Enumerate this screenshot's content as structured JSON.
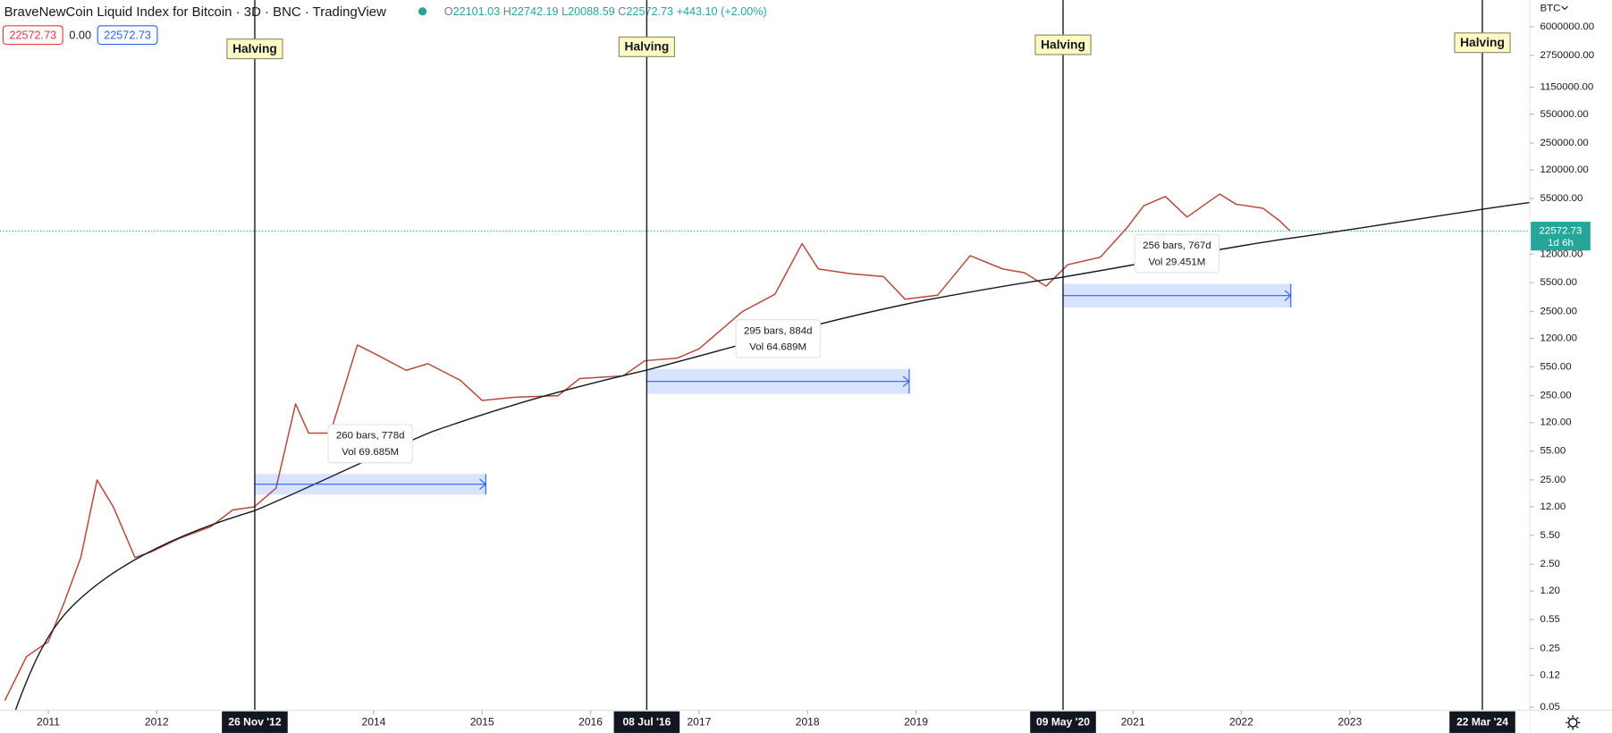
{
  "header": {
    "title": "BraveNewCoin Liquid Index for Bitcoin · 3D · BNC · TradingView",
    "ohlc": [
      {
        "key": "O",
        "value": "22101.03"
      },
      {
        "key": "H",
        "value": "22742.19"
      },
      {
        "key": "L",
        "value": "20088.59"
      },
      {
        "key": "C",
        "value": "22572.73"
      }
    ],
    "change": "+443.10 (+2.00%)",
    "sell": "22572.73",
    "spread": "0.00",
    "buy": "22572.73"
  },
  "chart_data": {
    "type": "line",
    "log_y": true,
    "color": "#b5493b",
    "axis_currency": "BTC",
    "xlim": [
      2010.555,
      2024.659
    ],
    "xticks": [
      2011,
      2012,
      2014,
      2015,
      2016,
      2017,
      2018,
      2019,
      2021,
      2022,
      2023
    ],
    "ylim": [
      0.046,
      12450000
    ],
    "yticks": [
      {
        "value": 6000000,
        "label": "6000000.00"
      },
      {
        "value": 2750000,
        "label": "2750000.00"
      },
      {
        "value": 1150000,
        "label": "1150000.00"
      },
      {
        "value": 550000,
        "label": "550000.00"
      },
      {
        "value": 250000,
        "label": "250000.00"
      },
      {
        "value": 120000,
        "label": "120000.00"
      },
      {
        "value": 55000,
        "label": "55000.00"
      },
      {
        "value": 12000,
        "label": "12000.00"
      },
      {
        "value": 5500,
        "label": "5500.00"
      },
      {
        "value": 2500,
        "label": "2500.00"
      },
      {
        "value": 1200,
        "label": "1200.00"
      },
      {
        "value": 550,
        "label": "550.00"
      },
      {
        "value": 250,
        "label": "250.00"
      },
      {
        "value": 120,
        "label": "120.00"
      },
      {
        "value": 55,
        "label": "55.00"
      },
      {
        "value": 25,
        "label": "25.00"
      },
      {
        "value": 12,
        "label": "12.00"
      },
      {
        "value": 5.5,
        "label": "5.50"
      },
      {
        "value": 2.5,
        "label": "2.50"
      },
      {
        "value": 1.2,
        "label": "1.20"
      },
      {
        "value": 0.55,
        "label": "0.55"
      },
      {
        "value": 0.25,
        "label": "0.25"
      },
      {
        "value": 0.12,
        "label": "0.12"
      },
      {
        "value": 0.05,
        "label": "0.05"
      }
    ],
    "x": [
      2010.6,
      2010.8,
      2011.0,
      2011.15,
      2011.3,
      2011.45,
      2011.6,
      2011.8,
      2011.95,
      2012.2,
      2012.5,
      2012.7,
      2012.9,
      2013.1,
      2013.28,
      2013.4,
      2013.6,
      2013.85,
      2014.0,
      2014.3,
      2014.5,
      2014.8,
      2015.0,
      2015.3,
      2015.7,
      2015.9,
      2016.3,
      2016.5,
      2016.8,
      2017.0,
      2017.4,
      2017.7,
      2017.95,
      2018.1,
      2018.4,
      2018.7,
      2018.9,
      2019.2,
      2019.5,
      2019.8,
      2020.0,
      2020.2,
      2020.4,
      2020.7,
      2020.95,
      2021.1,
      2021.3,
      2021.5,
      2021.8,
      2021.95,
      2022.2,
      2022.35,
      2022.45
    ],
    "values": [
      0.06,
      0.2,
      0.3,
      0.9,
      3,
      25,
      12,
      3,
      3.5,
      5,
      7,
      11,
      12,
      20,
      200,
      90,
      90,
      1000,
      800,
      500,
      600,
      380,
      220,
      240,
      250,
      400,
      430,
      650,
      700,
      900,
      2500,
      4000,
      16000,
      8000,
      7000,
      6500,
      3500,
      3900,
      11500,
      8000,
      7200,
      5000,
      9000,
      11000,
      25000,
      45000,
      58000,
      33000,
      62000,
      47000,
      42000,
      30000,
      22572.73
    ],
    "last": {
      "value": 22572.73,
      "countdown": "1d 6h"
    },
    "halvings": [
      {
        "x": 2012.904,
        "label": "Halving",
        "date": "26 Nov '12"
      },
      {
        "x": 2016.518,
        "label": "Halving",
        "date": "08 Jul '16"
      },
      {
        "x": 2020.356,
        "label": "Halving",
        "date": "09 May '20"
      },
      {
        "x": 2024.222,
        "label": "Halving",
        "date": "22 Mar '24"
      }
    ],
    "measures": [
      {
        "start": 2012.904,
        "end": 2015.034,
        "top": 29.4,
        "bottom": 16.8,
        "bars": "260 bars, 778d",
        "vol": "Vol 69.685M"
      },
      {
        "start": 2016.518,
        "end": 2018.938,
        "top": 518,
        "bottom": 264,
        "bars": "295 bars, 884d",
        "vol": "Vol 64.689M"
      },
      {
        "start": 2020.356,
        "end": 2022.456,
        "top": 5330,
        "bottom": 2794,
        "bars": "256 bars, 767d",
        "vol": "Vol 29.451M"
      }
    ]
  }
}
